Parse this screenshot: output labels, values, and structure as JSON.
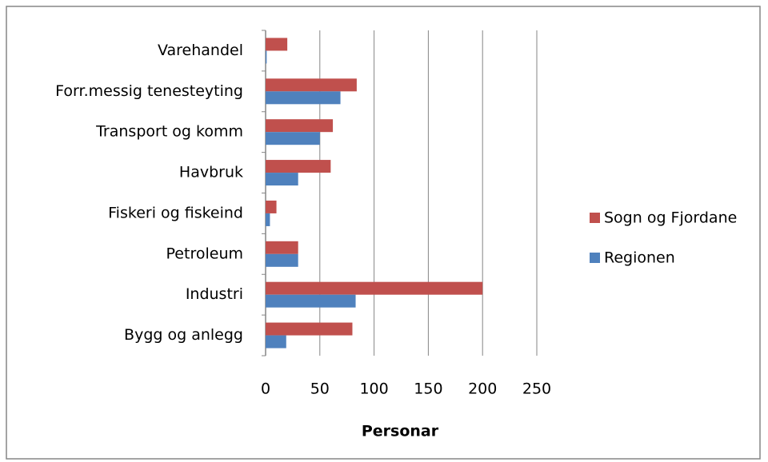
{
  "chart_data": {
    "type": "hbar",
    "categories": [
      "Varehandel",
      "Forr.messig tenesteyting",
      "Transport og komm",
      "Havbruk",
      "Fiskeri og fiskeind",
      "Petroleum",
      "Industri",
      "Bygg og anlegg"
    ],
    "series": [
      {
        "name": "Sogn og Fjordane",
        "color": "#c0504d",
        "values": [
          20,
          84,
          62,
          60,
          10,
          30,
          200,
          80
        ]
      },
      {
        "name": "Regionen",
        "color": "#4f81bd",
        "values": [
          1,
          69,
          50,
          30,
          4,
          30,
          83,
          19
        ]
      }
    ],
    "x_label": "Personar",
    "xlim": [
      0,
      250
    ],
    "xticks": [
      0,
      50,
      100,
      150,
      200,
      250
    ],
    "grid": true,
    "legend": "right"
  }
}
